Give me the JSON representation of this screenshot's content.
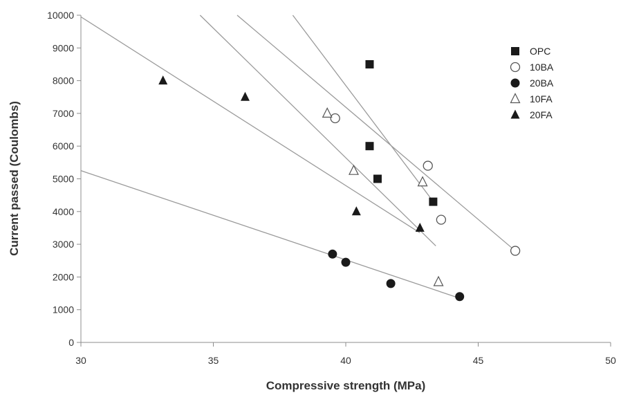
{
  "chart_data": {
    "type": "scatter",
    "title": "",
    "xlabel": "Compressive strength (MPa)",
    "ylabel": "Current passed (Coulombs)",
    "xlim": [
      30,
      50
    ],
    "ylim": [
      0,
      10000
    ],
    "xticks": [
      30,
      35,
      40,
      45,
      50
    ],
    "yticks": [
      0,
      1000,
      2000,
      3000,
      4000,
      5000,
      6000,
      7000,
      8000,
      9000,
      10000
    ],
    "grid": false,
    "legend_position": "top-right",
    "series": [
      {
        "name": "OPC",
        "marker": "filled-square",
        "points": [
          [
            40.9,
            8500
          ],
          [
            40.9,
            6000
          ],
          [
            41.2,
            5000
          ],
          [
            43.3,
            4300
          ]
        ],
        "trendline": [
          [
            38.0,
            10000
          ],
          [
            43.4,
            4200
          ]
        ]
      },
      {
        "name": "10BA",
        "marker": "open-circle",
        "points": [
          [
            39.6,
            6850
          ],
          [
            43.1,
            5400
          ],
          [
            43.6,
            3750
          ],
          [
            46.4,
            2800
          ]
        ],
        "trendline": [
          [
            35.9,
            10000
          ],
          [
            46.4,
            2800
          ]
        ]
      },
      {
        "name": "20BA",
        "marker": "filled-circle",
        "points": [
          [
            39.5,
            2700
          ],
          [
            40.0,
            2450
          ],
          [
            41.7,
            1800
          ],
          [
            44.3,
            1400
          ]
        ],
        "trendline": [
          [
            30.0,
            5250
          ],
          [
            44.3,
            1350
          ]
        ]
      },
      {
        "name": "10FA",
        "marker": "open-triangle",
        "points": [
          [
            39.3,
            7000
          ],
          [
            40.3,
            5250
          ],
          [
            42.9,
            4900
          ],
          [
            43.5,
            1850
          ]
        ],
        "trendline": [
          [
            34.5,
            10000
          ],
          [
            43.4,
            2950
          ]
        ]
      },
      {
        "name": "20FA",
        "marker": "filled-triangle",
        "points": [
          [
            33.1,
            8000
          ],
          [
            36.2,
            7500
          ],
          [
            40.4,
            4000
          ],
          [
            42.8,
            3500
          ]
        ],
        "trendline": [
          [
            30.0,
            9950
          ],
          [
            42.8,
            3350
          ]
        ]
      }
    ]
  },
  "colors": {
    "marker": "#1a1a1a",
    "trendline": "#9a9a9a",
    "axis": "#8c8c8c"
  }
}
